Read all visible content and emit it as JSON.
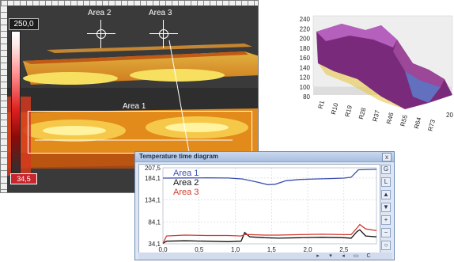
{
  "thermal": {
    "scale_max": "250,0",
    "scale_min": "34,5",
    "areas": [
      {
        "label": "Area 1"
      },
      {
        "label": "Area 2"
      },
      {
        "label": "Area 3"
      }
    ]
  },
  "surface_chart": {
    "type": "surface3d",
    "z_ticks": [
      "240",
      "220",
      "200",
      "180",
      "160",
      "140",
      "120",
      "100",
      "80"
    ],
    "row_labels": [
      "R1",
      "R10",
      "R19",
      "R28",
      "R37",
      "R46",
      "R55",
      "R64",
      "R73"
    ],
    "depth_label": "20"
  },
  "time_diagram": {
    "title": "Temperature time diagram",
    "close_label": "x",
    "y_ticks": [
      "207,5",
      "184,1",
      "134,1",
      "84,1",
      "34,1"
    ],
    "x_ticks": [
      "0,0",
      "0,5",
      "1,0",
      "1,5",
      "2,0",
      "2,5"
    ],
    "legend": [
      {
        "label": "Area 1",
        "color": "#3a4fb0"
      },
      {
        "label": "Area 2",
        "color": "#111111"
      },
      {
        "label": "Area 3",
        "color": "#d03a2e"
      }
    ],
    "side_buttons": [
      "G",
      "L",
      "▲",
      "▼",
      "+",
      "−",
      "○"
    ],
    "bottom_buttons": [
      "▸",
      "▾",
      "◂",
      "▭",
      "C"
    ]
  },
  "chart_data": {
    "type": "line",
    "title": "Temperature time diagram",
    "xlabel": "",
    "ylabel": "",
    "xlim": [
      0,
      2.95
    ],
    "ylim": [
      34.1,
      207.5
    ],
    "series": [
      {
        "name": "Area 1",
        "color": "#3a4fb0",
        "x": [
          0,
          0.3,
          0.6,
          0.9,
          1.1,
          1.3,
          1.45,
          1.55,
          1.7,
          1.9,
          2.1,
          2.3,
          2.5,
          2.6,
          2.7,
          2.95
        ],
        "y": [
          184.1,
          184.3,
          184.6,
          184.2,
          182,
          175,
          169,
          170,
          178,
          181,
          182,
          183,
          184,
          186,
          203,
          204
        ]
      },
      {
        "name": "Area 2",
        "color": "#111111",
        "x": [
          0,
          0.05,
          0.3,
          0.6,
          0.9,
          1.08,
          1.13,
          1.2,
          1.4,
          1.6,
          1.9,
          2.2,
          2.5,
          2.6,
          2.68,
          2.72,
          2.8,
          2.95
        ],
        "y": [
          35,
          40,
          41,
          40,
          39,
          40,
          60,
          50,
          48,
          47,
          48,
          49,
          48,
          47,
          62,
          66,
          52,
          50
        ]
      },
      {
        "name": "Area 3",
        "color": "#d03a2e",
        "x": [
          0,
          0.05,
          0.3,
          0.6,
          0.9,
          1.08,
          1.13,
          1.2,
          1.4,
          1.6,
          1.9,
          2.2,
          2.5,
          2.6,
          2.68,
          2.72,
          2.8,
          2.95
        ],
        "y": [
          35,
          52,
          54,
          53,
          53,
          52,
          55,
          55,
          54,
          54,
          55,
          56,
          55,
          55,
          70,
          78,
          68,
          64
        ]
      }
    ]
  }
}
